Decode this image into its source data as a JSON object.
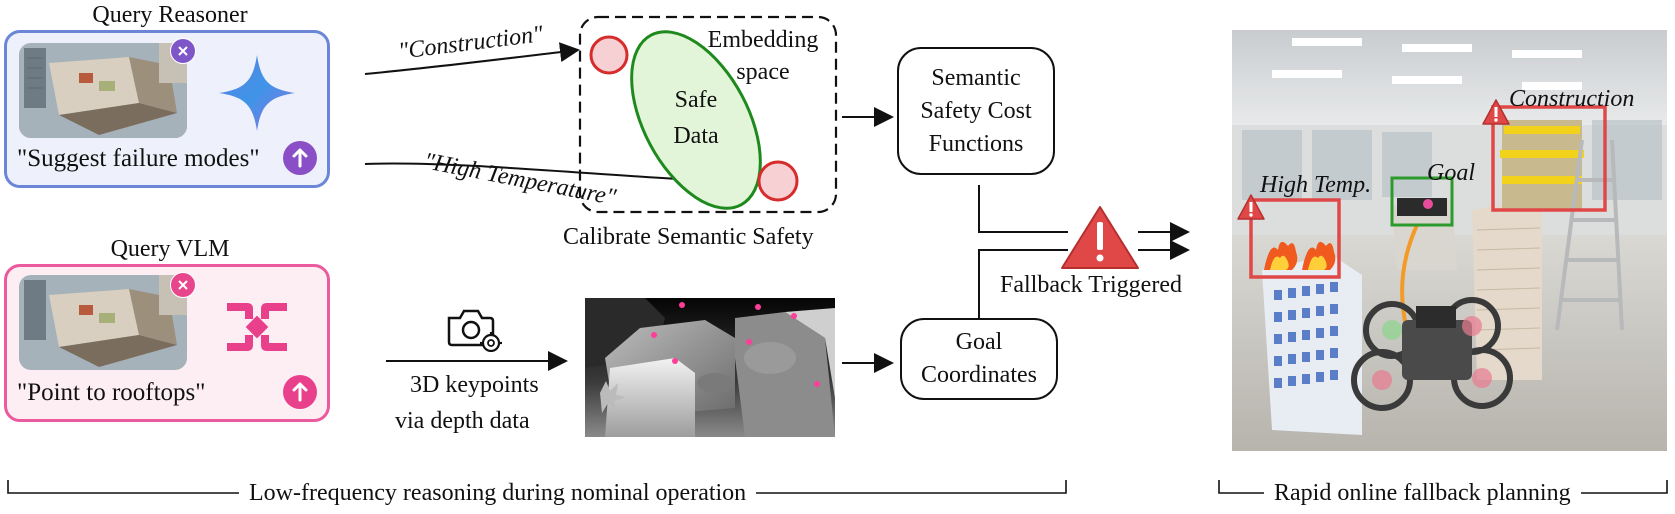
{
  "reasoner": {
    "title": "Query Reasoner",
    "prompt": "\"Suggest failure modes\""
  },
  "vlm": {
    "title": "Query VLM",
    "prompt": "\"Point to rooftops\""
  },
  "arrows": {
    "construction": "\"Construction\"",
    "high_temperature": "\"High Temperature\""
  },
  "embedding": {
    "label": "Embedding space",
    "safe_data": "Safe Data",
    "caption": "Calibrate Semantic Safety"
  },
  "keypoints": {
    "caption_line1": "3D keypoints",
    "caption_line2": "via depth data"
  },
  "boxes": {
    "cost_line1": "Semantic",
    "cost_line2": "Safety Cost",
    "cost_line3": "Functions",
    "goal_line1": "Goal",
    "goal_line2": "Coordinates"
  },
  "fallback": {
    "label": "Fallback Triggered"
  },
  "scene": {
    "construction": "Construction",
    "high_temp": "High Temp.",
    "goal": "Goal"
  },
  "bottom": {
    "left": "Low-frequency reasoning during nominal operation",
    "right": "Rapid online fallback planning"
  },
  "colors": {
    "reasoner_border": "#6b86d6",
    "vlm_border": "#ea5a9c",
    "danger_red": "#e04848",
    "safe_green": "#1e8a1e",
    "goal_green": "#2c9a2c"
  }
}
